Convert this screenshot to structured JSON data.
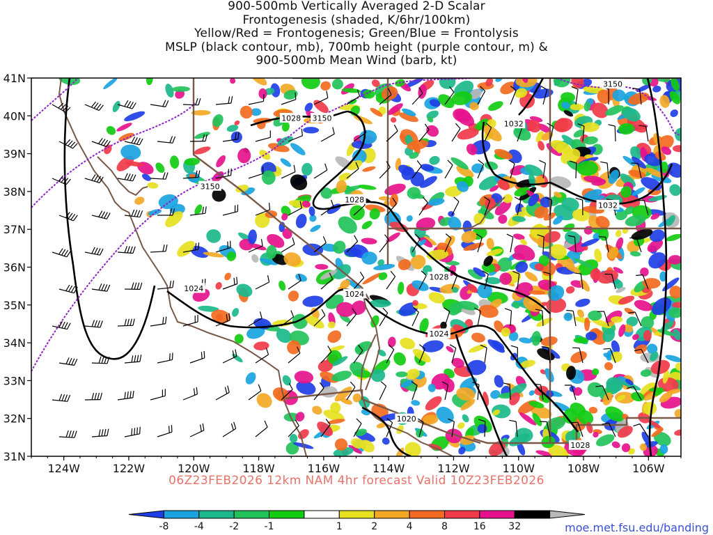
{
  "title_lines": [
    "900-500mb Vertically Averaged 2-D Scalar",
    "Frontogenesis (shaded, K/6hr/100km)",
    "Yellow/Red = Frontogenesis;  Green/Blue = Frontolysis",
    "MSLP (black contour, mb), 700mb height (purple contour, m) &",
    "900-500mb Mean Wind (barb, kt)"
  ],
  "lat_labels": [
    "41N",
    "40N",
    "39N",
    "38N",
    "37N",
    "36N",
    "35N",
    "34N",
    "33N",
    "32N",
    "31N"
  ],
  "lon_labels": [
    "124W",
    "122W",
    "120W",
    "118W",
    "116W",
    "114W",
    "112W",
    "110W",
    "108W",
    "106W"
  ],
  "footer": "06Z23FEB2026 12km NAM 4hr forecast Valid 10Z23FEB2026",
  "credit": "moe.met.fsu.edu/banding",
  "colorbar": {
    "ticks": [
      "-8",
      "-4",
      "-2",
      "-1",
      "1",
      "2",
      "4",
      "8",
      "16",
      "32"
    ],
    "colors": [
      "#1f3fe6",
      "#1aa3e0",
      "#1cb88a",
      "#22c25a",
      "#12cc12",
      "#ffffff",
      "#e6e020",
      "#f2a825",
      "#f26a20",
      "#f03a4a",
      "#e6128c",
      "#000000",
      "#b9b9b9"
    ]
  },
  "mslp_labels": [
    {
      "text": "1028",
      "lon": -117.0,
      "lat": 39.95
    },
    {
      "text": "1028",
      "lon": -115.05,
      "lat": 37.8
    },
    {
      "text": "1024",
      "lon": -120.0,
      "lat": 35.45
    },
    {
      "text": "1024",
      "lon": -115.05,
      "lat": 35.3
    },
    {
      "text": "1028",
      "lon": -112.45,
      "lat": 35.75
    },
    {
      "text": "1024",
      "lon": -112.45,
      "lat": 34.25
    },
    {
      "text": "1032",
      "lon": -110.15,
      "lat": 39.8
    },
    {
      "text": "1032",
      "lon": -107.25,
      "lat": 37.65
    },
    {
      "text": "1020",
      "lon": -113.45,
      "lat": 32.0
    },
    {
      "text": "1028",
      "lon": -108.1,
      "lat": 31.3
    }
  ],
  "height_labels": [
    {
      "text": "3150",
      "lon": -116.05,
      "lat": 39.95
    },
    {
      "text": "3150",
      "lon": -119.5,
      "lat": 38.15
    },
    {
      "text": "3150",
      "lon": -107.1,
      "lat": 40.85
    }
  ],
  "colors": {
    "mslp": "#000000",
    "height": "#8e22c8",
    "border": "#7a5848",
    "barb": "#000000"
  }
}
